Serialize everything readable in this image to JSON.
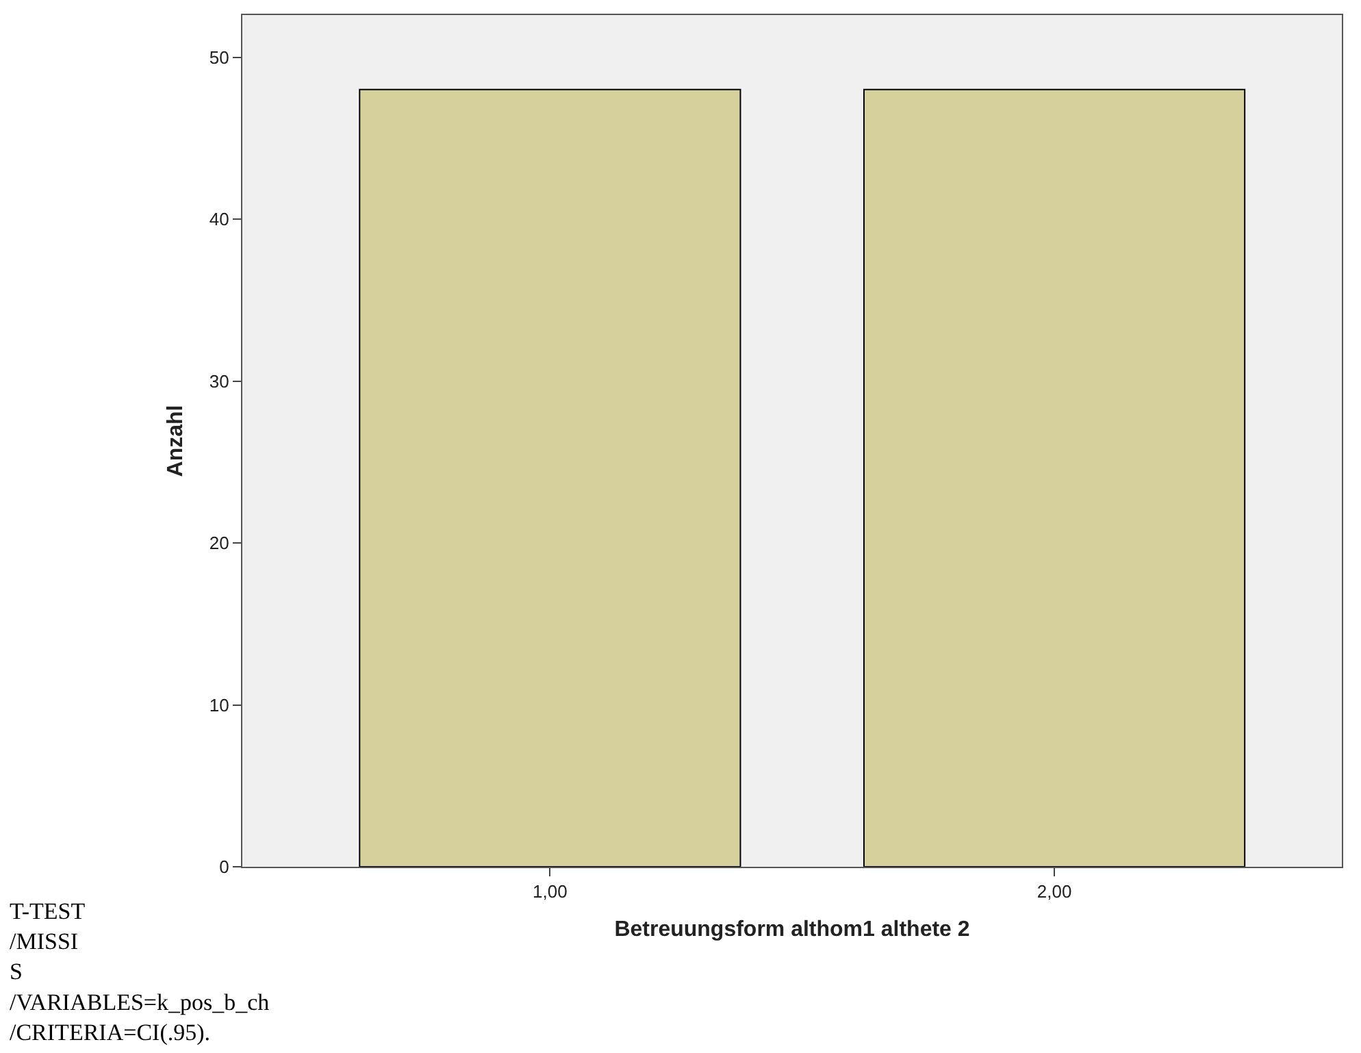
{
  "chart_data": {
    "type": "bar",
    "xlabel": "Betreuungsform althom1 althete 2",
    "ylabel": "Anzahl",
    "categories": [
      "1,00",
      "2,00"
    ],
    "values": [
      48,
      48
    ],
    "color": "#d6d09c",
    "ylim": [
      0,
      52.6
    ],
    "yticks": [
      0,
      10,
      20,
      30,
      40,
      50
    ],
    "grid": false,
    "annotations": [
      "T-TEST",
      "/MISSI",
      "S",
      "/VARIABLES=k_pos_b_ch",
      "/CRITERIA=CI(.95)."
    ]
  }
}
